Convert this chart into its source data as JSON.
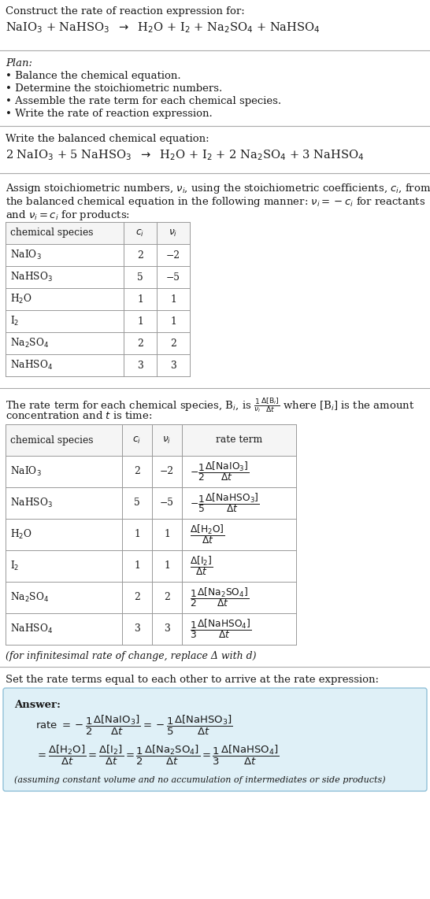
{
  "bg_color": "#ffffff",
  "text_color": "#1a1a1a",
  "figsize": [
    5.46,
    11.42
  ],
  "dpi": 100,
  "title_text": "Construct the rate of reaction expression for:",
  "plan_header": "Plan:",
  "plan_items": [
    "• Balance the chemical equation.",
    "• Determine the stoichiometric numbers.",
    "• Assemble the rate term for each chemical species.",
    "• Write the rate of reaction expression."
  ],
  "balanced_header": "Write the balanced chemical equation:",
  "set_rate_text": "Set the rate terms equal to each other to arrive at the rate expression:",
  "infinitesimal_note": "(for infinitesimal rate of change, replace Δ with d)",
  "answer_box_color": "#dff0f7",
  "answer_box_border": "#90c0d8",
  "answer_label": "Answer:",
  "answer_note": "(assuming constant volume and no accumulation of intermediates or side products)",
  "table1_rows": [
    [
      "NaIO$_3$",
      "2",
      "−2"
    ],
    [
      "NaHSO$_3$",
      "5",
      "−5"
    ],
    [
      "H$_2$O",
      "1",
      "1"
    ],
    [
      "I$_2$",
      "1",
      "1"
    ],
    [
      "Na$_2$SO$_4$",
      "2",
      "2"
    ],
    [
      "NaHSO$_4$",
      "3",
      "3"
    ]
  ],
  "table2_rows": [
    [
      "NaIO$_3$",
      "2",
      "−2"
    ],
    [
      "NaHSO$_3$",
      "5",
      "−5"
    ],
    [
      "H$_2$O",
      "1",
      "1"
    ],
    [
      "I$_2$",
      "1",
      "1"
    ],
    [
      "Na$_2$SO$_4$",
      "2",
      "2"
    ],
    [
      "NaHSO$_4$",
      "3",
      "3"
    ]
  ],
  "line_color": "#aaaaaa",
  "table_line_color": "#999999",
  "table_header_bg": "#f5f5f5"
}
